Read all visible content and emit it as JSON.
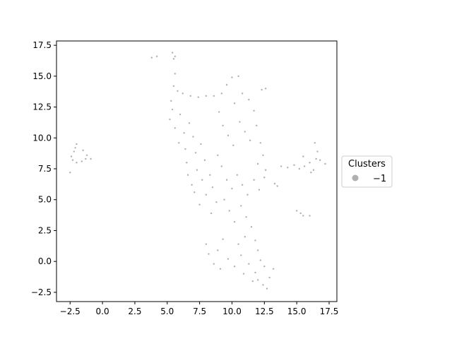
{
  "chart_data": {
    "type": "scatter",
    "title": "",
    "xlabel": "",
    "ylabel": "",
    "xlim": [
      -3.55,
      18.1
    ],
    "ylim": [
      -3.25,
      17.85
    ],
    "xticks": [
      -2.5,
      0.0,
      2.5,
      5.0,
      7.5,
      10.0,
      12.5,
      15.0,
      17.5
    ],
    "yticks": [
      -2.5,
      0.0,
      2.5,
      5.0,
      7.5,
      10.0,
      12.5,
      15.0,
      17.5
    ],
    "xtick_labels": [
      "−2.5",
      "0.0",
      "2.5",
      "5.0",
      "7.5",
      "10.0",
      "12.5",
      "15.0",
      "17.5"
    ],
    "ytick_labels": [
      "−2.5",
      "0.0",
      "2.5",
      "5.0",
      "7.5",
      "10.0",
      "12.5",
      "15.0",
      "17.5"
    ],
    "grid": false,
    "legend": {
      "title": "Clusters",
      "placement": "right",
      "entries": [
        {
          "label": "−1",
          "color": "#b0b0b0"
        }
      ]
    },
    "series": [
      {
        "name": "−1",
        "color": "#b0b0b0",
        "points": [
          [
            -2.4,
            8.5
          ],
          [
            -2.2,
            8.9
          ],
          [
            -2.1,
            9.2
          ],
          [
            -2.0,
            9.5
          ],
          [
            -2.3,
            8.2
          ],
          [
            -2.0,
            8.0
          ],
          [
            -1.6,
            8.1
          ],
          [
            -1.3,
            8.3
          ],
          [
            -1.5,
            9.0
          ],
          [
            -1.2,
            8.6
          ],
          [
            -0.9,
            8.3
          ],
          [
            -2.5,
            7.2
          ],
          [
            3.8,
            16.5
          ],
          [
            4.2,
            16.6
          ],
          [
            5.4,
            16.9
          ],
          [
            5.6,
            16.6
          ],
          [
            5.5,
            16.4
          ],
          [
            5.6,
            15.2
          ],
          [
            5.5,
            14.2
          ],
          [
            5.3,
            13.0
          ],
          [
            5.4,
            12.3
          ],
          [
            5.8,
            13.8
          ],
          [
            6.2,
            13.6
          ],
          [
            6.8,
            13.4
          ],
          [
            7.4,
            13.3
          ],
          [
            8.0,
            13.4
          ],
          [
            8.6,
            13.4
          ],
          [
            5.2,
            11.5
          ],
          [
            5.6,
            10.8
          ],
          [
            6.0,
            11.9
          ],
          [
            6.3,
            10.4
          ],
          [
            6.7,
            11.2
          ],
          [
            5.9,
            9.6
          ],
          [
            6.4,
            9.1
          ],
          [
            7.0,
            10.1
          ],
          [
            7.2,
            8.8
          ],
          [
            6.5,
            8.0
          ],
          [
            7.6,
            9.5
          ],
          [
            7.9,
            8.2
          ],
          [
            6.6,
            7.0
          ],
          [
            6.9,
            6.2
          ],
          [
            7.3,
            7.4
          ],
          [
            7.1,
            5.6
          ],
          [
            7.7,
            6.6
          ],
          [
            7.5,
            4.6
          ],
          [
            8.0,
            5.4
          ],
          [
            8.3,
            7.0
          ],
          [
            8.5,
            6.0
          ],
          [
            8.4,
            3.9
          ],
          [
            8.8,
            4.8
          ],
          [
            8.9,
            8.6
          ],
          [
            9.0,
            12.1
          ],
          [
            9.2,
            13.6
          ],
          [
            9.6,
            14.3
          ],
          [
            10.0,
            14.9
          ],
          [
            10.5,
            15.0
          ],
          [
            10.2,
            12.8
          ],
          [
            10.8,
            13.6
          ],
          [
            11.3,
            13.1
          ],
          [
            11.7,
            12.2
          ],
          [
            12.3,
            13.9
          ],
          [
            12.6,
            14.0
          ],
          [
            9.3,
            11.0
          ],
          [
            9.7,
            10.2
          ],
          [
            10.1,
            9.4
          ],
          [
            10.6,
            11.3
          ],
          [
            11.0,
            10.5
          ],
          [
            11.4,
            9.8
          ],
          [
            11.9,
            11.0
          ],
          [
            12.2,
            9.6
          ],
          [
            12.4,
            8.6
          ],
          [
            12.0,
            7.9
          ],
          [
            12.6,
            7.4
          ],
          [
            9.2,
            7.7
          ],
          [
            9.6,
            6.6
          ],
          [
            10.0,
            5.9
          ],
          [
            10.4,
            7.0
          ],
          [
            10.8,
            6.2
          ],
          [
            11.2,
            5.4
          ],
          [
            11.7,
            6.6
          ],
          [
            12.1,
            5.8
          ],
          [
            12.5,
            6.8
          ],
          [
            13.3,
            6.3
          ],
          [
            13.5,
            6.1
          ],
          [
            9.4,
            5.0
          ],
          [
            9.8,
            4.1
          ],
          [
            10.2,
            3.2
          ],
          [
            10.7,
            4.5
          ],
          [
            11.1,
            3.6
          ],
          [
            11.5,
            2.8
          ],
          [
            11.0,
            2.0
          ],
          [
            10.5,
            1.4
          ],
          [
            11.8,
            1.7
          ],
          [
            12.0,
            0.9
          ],
          [
            8.0,
            1.4
          ],
          [
            8.2,
            0.6
          ],
          [
            8.6,
            -0.2
          ],
          [
            8.9,
            0.9
          ],
          [
            9.3,
            1.8
          ],
          [
            9.1,
            -0.6
          ],
          [
            9.7,
            0.2
          ],
          [
            10.2,
            -0.4
          ],
          [
            10.7,
            0.5
          ],
          [
            11.3,
            -0.2
          ],
          [
            11.8,
            -0.9
          ],
          [
            12.0,
            -1.5
          ],
          [
            12.4,
            -1.9
          ],
          [
            12.7,
            -2.2
          ],
          [
            12.9,
            -1.3
          ],
          [
            13.2,
            -0.6
          ],
          [
            12.5,
            -0.4
          ],
          [
            11.6,
            -1.6
          ],
          [
            10.9,
            -1.0
          ],
          [
            12.2,
            0.1
          ],
          [
            13.8,
            7.7
          ],
          [
            14.3,
            7.6
          ],
          [
            14.8,
            7.8
          ],
          [
            15.2,
            7.5
          ],
          [
            15.6,
            7.7
          ],
          [
            16.0,
            8.0
          ],
          [
            16.3,
            7.4
          ],
          [
            16.5,
            8.3
          ],
          [
            16.6,
            8.9
          ],
          [
            16.4,
            9.6
          ],
          [
            16.8,
            8.2
          ],
          [
            17.2,
            7.9
          ],
          [
            15.5,
            8.5
          ],
          [
            16.1,
            7.2
          ],
          [
            15.0,
            4.1
          ],
          [
            15.3,
            3.9
          ],
          [
            15.5,
            3.7
          ],
          [
            16.0,
            3.7
          ]
        ]
      }
    ]
  }
}
